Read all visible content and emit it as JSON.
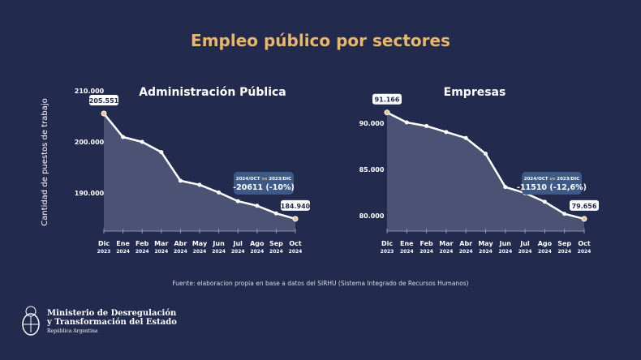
{
  "title": "Empleo público por sectores",
  "source": "Fuente: elaboracion propia en base a datos del SIRHU (Sistema Integrado de Recursos Humanos)",
  "footer": {
    "line1": "Ministerio de Desregulación",
    "line2": "y Transformación del Estado",
    "line3": "República Argentina"
  },
  "colors": {
    "background": "#222a4e",
    "accent": "#e9b66a",
    "area": "#4c5273",
    "line": "#ffffff",
    "callout": "#3d5a87"
  },
  "chart_data": [
    {
      "type": "area",
      "title": "Administración Pública",
      "ylabel": "Cantidad de puestos de trabajo",
      "categories": [
        "Dic 2023",
        "Ene 2024",
        "Feb 2024",
        "Mar 2024",
        "Abr 2024",
        "May 2024",
        "Jun 2024",
        "Jul 2024",
        "Ago 2024",
        "Sep 2024",
        "Oct 2024"
      ],
      "months": [
        "Dic",
        "Ene",
        "Feb",
        "Mar",
        "Abr",
        "May",
        "Jun",
        "Jul",
        "Ago",
        "Sep",
        "Oct"
      ],
      "years": [
        "2023",
        "2024",
        "2024",
        "2024",
        "2024",
        "2024",
        "2024",
        "2024",
        "2024",
        "2024",
        "2024"
      ],
      "values": [
        205551,
        200950,
        200000,
        198000,
        192400,
        191600,
        190100,
        188400,
        187500,
        186000,
        184940
      ],
      "yticks": [
        190000,
        200000,
        210000
      ],
      "ytick_labels": [
        "190.000",
        "200.000",
        "210.000"
      ],
      "ylim": [
        182500,
        210000
      ],
      "start_label": "205.551",
      "end_label": "184.940",
      "callout": {
        "head": "2024/OCT",
        "vs": "vs",
        "tail": "2023/DIC",
        "value": "-20611 (-10%)"
      }
    },
    {
      "type": "area",
      "title": "Empresas",
      "categories": [
        "Dic 2023",
        "Ene 2024",
        "Feb 2024",
        "Mar 2024",
        "Abr 2024",
        "May 2024",
        "Jun 2024",
        "Jul 2024",
        "Ago 2024",
        "Sep 2024",
        "Oct 2024"
      ],
      "months": [
        "Dic",
        "Ene",
        "Feb",
        "Mar",
        "Abr",
        "May",
        "Jun",
        "Jul",
        "Ago",
        "Sep",
        "Oct"
      ],
      "years": [
        "2023",
        "2024",
        "2024",
        "2024",
        "2024",
        "2024",
        "2024",
        "2024",
        "2024",
        "2024",
        "2024"
      ],
      "values": [
        91166,
        90090,
        89700,
        89050,
        88400,
        86700,
        83100,
        82450,
        81500,
        80200,
        79656
      ],
      "yticks": [
        80000,
        85000,
        90000
      ],
      "ytick_labels": [
        "80.000",
        "85.000",
        "90.000"
      ],
      "ylim": [
        78300,
        92000
      ],
      "start_label": "91.166",
      "end_label": "79.656",
      "callout": {
        "head": "2024/OCT",
        "vs": "vs",
        "tail": "2023/DIC",
        "value": "-11510 (-12,6%)"
      }
    }
  ]
}
